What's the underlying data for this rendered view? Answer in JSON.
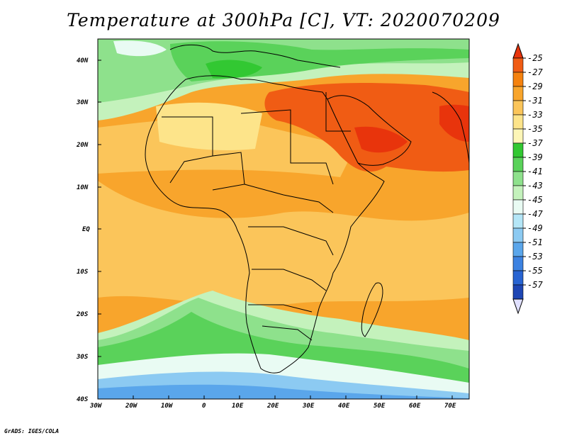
{
  "title": "Temperature at 300hPa [C], VT: 2020070209",
  "credit": "GrADS: IGES/COLA",
  "axes": {
    "lon_labels": [
      "30W",
      "20W",
      "10W",
      "0",
      "10E",
      "20E",
      "30E",
      "40E",
      "50E",
      "60E",
      "70E"
    ],
    "lat_labels": [
      "40N",
      "30N",
      "20N",
      "10N",
      "EQ",
      "10S",
      "20S",
      "30S",
      "40S"
    ]
  },
  "colorbar": {
    "labels": [
      "-25",
      "-27",
      "-29",
      "-31",
      "-33",
      "-35",
      "-37",
      "-39",
      "-41",
      "-43",
      "-45",
      "-47",
      "-49",
      "-51",
      "-53",
      "-55",
      "-57"
    ],
    "colors": [
      "#e8340c",
      "#f05c14",
      "#f5820f",
      "#f8a52c",
      "#fbc55a",
      "#fde48a",
      "#fdf6b7",
      "#32c832",
      "#5ad25a",
      "#8ee18c",
      "#c4f2bc",
      "#e9fbf3",
      "#b4e6f7",
      "#8ccaf2",
      "#5aa6eb",
      "#3c82e1",
      "#2864d2",
      "#1e46b4",
      "#0f1e78"
    ]
  },
  "field": {
    "description_colors": {
      "hot": "#f05c14",
      "warm": "#f5820f",
      "mild": "#f8a52c",
      "cool_yellow": "#fbc55a",
      "pale_yellow": "#fde48a",
      "green": "#5ad25a",
      "light_green": "#8ee18c",
      "pale_green": "#c4f2bc",
      "pale_blue": "#e9fbf3",
      "blue": "#8ccaf2",
      "deep_blue": "#5aa6eb"
    }
  }
}
